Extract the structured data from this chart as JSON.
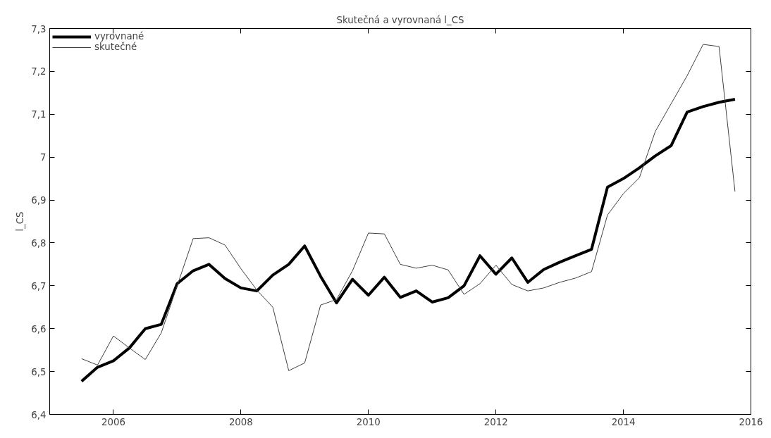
{
  "chart_data": {
    "type": "line",
    "title": "Skutečná a vyrovnaná l_CS",
    "ylabel": "l_CS",
    "x": [
      2005.5,
      2005.75,
      2006,
      2006.25,
      2006.5,
      2006.75,
      2007,
      2007.25,
      2007.5,
      2007.75,
      2008,
      2008.25,
      2008.5,
      2008.75,
      2009,
      2009.25,
      2009.5,
      2009.75,
      2010,
      2010.25,
      2010.5,
      2010.75,
      2011,
      2011.25,
      2011.5,
      2011.75,
      2012,
      2012.25,
      2012.5,
      2012.75,
      2013,
      2013.25,
      2013.5,
      2013.75,
      2014,
      2014.25,
      2014.5,
      2014.75,
      2015,
      2015.25,
      2015.5,
      2015.75
    ],
    "series": [
      {
        "name": "vyrovnané",
        "color": "#000000",
        "values": [
          6.477,
          6.51,
          6.525,
          6.555,
          6.6,
          6.61,
          6.705,
          6.735,
          6.75,
          6.717,
          6.695,
          6.688,
          6.725,
          6.75,
          6.793,
          6.722,
          6.66,
          6.715,
          6.678,
          6.72,
          6.673,
          6.688,
          6.662,
          6.672,
          6.7,
          6.77,
          6.727,
          6.765,
          6.708,
          6.738,
          6.755,
          6.77,
          6.785,
          6.93,
          6.95,
          6.975,
          7.003,
          7.027,
          7.105,
          7.118,
          7.128,
          7.135
        ]
      },
      {
        "name": "skutečné",
        "color": "#404040",
        "values": [
          6.53,
          6.515,
          6.583,
          6.555,
          6.528,
          6.59,
          6.7,
          6.81,
          6.812,
          6.795,
          6.74,
          6.69,
          6.65,
          6.502,
          6.52,
          6.655,
          6.668,
          6.735,
          6.823,
          6.821,
          6.75,
          6.741,
          6.748,
          6.737,
          6.68,
          6.705,
          6.748,
          6.703,
          6.688,
          6.695,
          6.708,
          6.718,
          6.733,
          6.865,
          6.915,
          6.952,
          7.06,
          7.125,
          7.19,
          7.263,
          7.258,
          6.92
        ]
      }
    ],
    "xlim": [
      2005,
      2016
    ],
    "xticks": [
      2006,
      2008,
      2010,
      2012,
      2014,
      2016
    ],
    "ylim": [
      6.4,
      7.3
    ],
    "yticks": [
      {
        "value": 6.4,
        "label": "6,4"
      },
      {
        "value": 6.5,
        "label": "6,5"
      },
      {
        "value": 6.6,
        "label": "6,6"
      },
      {
        "value": 6.7,
        "label": "6,7"
      },
      {
        "value": 6.8,
        "label": "6,8"
      },
      {
        "value": 6.9,
        "label": "6,9"
      },
      7,
      {
        "value": 7.1,
        "label": "7,1"
      },
      {
        "value": 7.2,
        "label": "7,2"
      },
      {
        "value": 7.3,
        "label": "7,3"
      }
    ],
    "grid": false,
    "legend": "top left",
    "line_style": "solid",
    "marker": "none"
  }
}
